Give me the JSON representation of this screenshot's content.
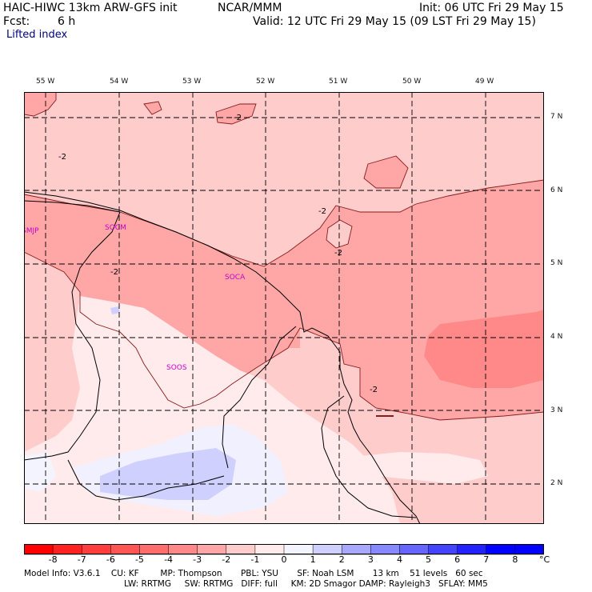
{
  "header": {
    "model": "HAIC-HIWC 13km ARW-GFS init",
    "org": "NCAR/MMM",
    "init": "Init: 06 UTC Fri 29 May 15",
    "fcst_label": "Fcst:",
    "fcst_value": "6 h",
    "valid": "Valid: 12 UTC Fri 29 May 15 (09 LST Fri 29 May 15)",
    "field": "Lifted index"
  },
  "map": {
    "lon_labels": [
      "55 W",
      "54 W",
      "53 W",
      "52 W",
      "51 W",
      "50 W",
      "49 W"
    ],
    "lat_labels": [
      "7 N",
      "6 N",
      "5 N",
      "4 N",
      "3 N",
      "2 N"
    ],
    "stations": [
      "SMJP",
      "SOCM",
      "SOCA",
      "SOOS"
    ],
    "contour_labels": [
      "-2",
      "-2",
      "-2",
      "-2",
      "-2",
      "-2"
    ]
  },
  "colorbar": {
    "values": [
      "-8",
      "-7",
      "-6",
      "-5",
      "-4",
      "-3",
      "-2",
      "-1",
      "0",
      "1",
      "2",
      "3",
      "4",
      "5",
      "6",
      "7",
      "8"
    ],
    "unit": "°C",
    "colors": [
      "#ff0000",
      "#ff2222",
      "#ff3d3d",
      "#ff5555",
      "#ff6e6e",
      "#ff8888",
      "#ffa7a7",
      "#ffcccc",
      "#ffebeb",
      "#f4f4ff",
      "#d0d0ff",
      "#a8a8ff",
      "#8888ff",
      "#6666ff",
      "#4444ff",
      "#2222ff",
      "#0000ff"
    ]
  },
  "footer": {
    "line1": "Model Info: V3.6.1    CU: KF        MP: Thompson       PBL: YSU       SF: Noah LSM       13 km    51 levels   60 sec",
    "line2": "LW: RRTMG     SW: RRTMG   DIFF: full     KM: 2D Smagor DAMP: Rayleigh3   SFLAY: MM5"
  }
}
